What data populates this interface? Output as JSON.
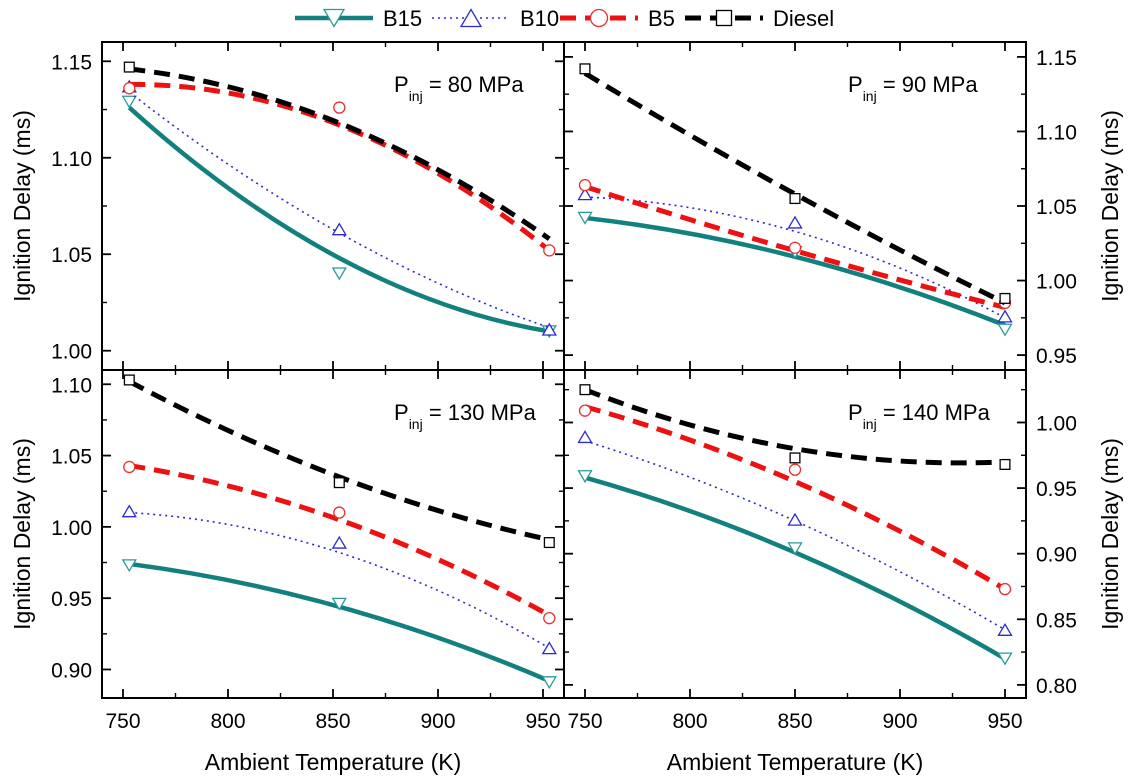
{
  "legend": {
    "placement": "top-center",
    "entries": [
      {
        "label": "B15",
        "series": "B15"
      },
      {
        "label": "B10",
        "series": "B10"
      },
      {
        "label": "B5",
        "series": "B5"
      },
      {
        "label": "Diesel",
        "series": "Diesel"
      }
    ]
  },
  "series_styles": {
    "B15": {
      "color": "#138080",
      "marker_color": "#2a9a96",
      "marker": "triangle-down",
      "line": "solid"
    },
    "B10": {
      "color": "#2a2ad4",
      "marker_color": "#2a2ad4",
      "marker": "triangle-up",
      "line": "dotted"
    },
    "B5": {
      "color": "#ee1111",
      "marker_color": "#e83030",
      "marker": "circle",
      "line": "dashed"
    },
    "Diesel": {
      "color": "#000000",
      "marker_color": "#000000",
      "marker": "square",
      "line": "dashed"
    }
  },
  "chart_data": [
    {
      "type": "scatter",
      "annotation": {
        "main": "P",
        "sub": "inj",
        "rest": " = 80 MPa"
      },
      "xlabel": "",
      "ylabel": "Ignition Delay (ms)",
      "ylabel_side": "left",
      "xlim": [
        740,
        960
      ],
      "ylim": [
        0.99,
        1.16
      ],
      "xticks": [
        "750",
        "800",
        "850",
        "900",
        "950"
      ],
      "show_xtick_labels": false,
      "yticks": [
        "1.00",
        "1.05",
        "1.10",
        "1.15"
      ],
      "series": [
        {
          "name": "B15",
          "x": [
            753,
            853,
            953
          ],
          "y": [
            1.129,
            1.04,
            1.01
          ],
          "fit": [
            1.126,
            1.048,
            1.01
          ]
        },
        {
          "name": "B10",
          "x": [
            753,
            853,
            953
          ],
          "y": [
            1.137,
            1.063,
            1.011
          ],
          "fit": [
            1.134,
            1.061,
            1.012
          ]
        },
        {
          "name": "B5",
          "x": [
            753,
            853,
            953
          ],
          "y": [
            1.136,
            1.126,
            1.052
          ],
          "fit": [
            1.138,
            1.117,
            1.052
          ]
        },
        {
          "name": "Diesel",
          "x": [
            753,
            853,
            953
          ],
          "y": [
            1.147,
            null,
            null
          ],
          "fit": [
            1.146,
            1.118,
            1.058
          ]
        }
      ]
    },
    {
      "type": "scatter",
      "annotation": {
        "main": "P",
        "sub": "inj",
        "rest": " = 90 MPa"
      },
      "xlabel": "",
      "ylabel": "Ignition Delay (ms)",
      "ylabel_side": "right",
      "xlim": [
        740,
        960
      ],
      "ylim": [
        0.94,
        1.16
      ],
      "xticks": [
        "750",
        "800",
        "850",
        "900",
        "950"
      ],
      "show_xtick_labels": false,
      "yticks": [
        "0.95",
        "1.00",
        "1.05",
        "1.10",
        "1.15"
      ],
      "series": [
        {
          "name": "B15",
          "x": [
            750,
            850,
            950
          ],
          "y": [
            1.042,
            1.019,
            0.967
          ],
          "fit": [
            1.042,
            1.016,
            0.97
          ]
        },
        {
          "name": "B10",
          "x": [
            750,
            850,
            950
          ],
          "y": [
            1.058,
            1.039,
            0.976
          ],
          "fit": [
            1.056,
            1.033,
            0.975
          ]
        },
        {
          "name": "B5",
          "x": [
            750,
            850,
            950
          ],
          "y": [
            1.064,
            1.022,
            0.985
          ],
          "fit": [
            1.063,
            1.02,
            0.982
          ]
        },
        {
          "name": "Diesel",
          "x": [
            750,
            850,
            950
          ],
          "y": [
            1.142,
            1.055,
            0.988
          ],
          "fit": [
            1.139,
            1.058,
            0.985
          ]
        }
      ]
    },
    {
      "type": "scatter",
      "annotation": {
        "main": "P",
        "sub": "inj",
        "rest": " = 130 MPa"
      },
      "xlabel": "Ambient Temperature (K)",
      "ylabel": "Ignition Delay (ms)",
      "ylabel_side": "left",
      "xlim": [
        740,
        960
      ],
      "ylim": [
        0.88,
        1.11
      ],
      "xticks": [
        "750",
        "800",
        "850",
        "900",
        "950"
      ],
      "show_xtick_labels": true,
      "yticks": [
        "0.90",
        "0.95",
        "1.00",
        "1.05",
        "1.10"
      ],
      "series": [
        {
          "name": "B15",
          "x": [
            753,
            853,
            953
          ],
          "y": [
            0.973,
            0.946,
            0.891
          ],
          "fit": [
            0.974,
            0.944,
            0.892
          ]
        },
        {
          "name": "B10",
          "x": [
            753,
            853,
            953
          ],
          "y": [
            1.011,
            0.989,
            0.915
          ],
          "fit": [
            1.01,
            0.982,
            0.915
          ]
        },
        {
          "name": "B5",
          "x": [
            753,
            853,
            953
          ],
          "y": [
            1.042,
            1.01,
            0.936
          ],
          "fit": [
            1.043,
            1.005,
            0.938
          ]
        },
        {
          "name": "Diesel",
          "x": [
            753,
            853,
            953
          ],
          "y": [
            1.103,
            1.031,
            0.989
          ],
          "fit": [
            1.102,
            1.035,
            0.991
          ]
        }
      ]
    },
    {
      "type": "scatter",
      "annotation": {
        "main": "P",
        "sub": "inj",
        "rest": " = 140 MPa"
      },
      "xlabel": "Ambient Temperature (K)",
      "ylabel": "Ignition Delay (ms)",
      "ylabel_side": "right",
      "xlim": [
        740,
        960
      ],
      "ylim": [
        0.79,
        1.04
      ],
      "xticks": [
        "750",
        "800",
        "850",
        "900",
        "950"
      ],
      "show_xtick_labels": true,
      "yticks": [
        "0.80",
        "0.85",
        "0.90",
        "0.95",
        "1.00"
      ],
      "series": [
        {
          "name": "B15",
          "x": [
            750,
            850,
            950
          ],
          "y": [
            0.959,
            0.904,
            0.82
          ],
          "fit": [
            0.958,
            0.901,
            0.82
          ]
        },
        {
          "name": "B10",
          "x": [
            750,
            850,
            950
          ],
          "y": [
            0.989,
            0.926,
            0.842
          ],
          "fit": [
            0.986,
            0.925,
            0.842
          ]
        },
        {
          "name": "B5",
          "x": [
            750,
            850,
            950
          ],
          "y": [
            1.009,
            0.964,
            0.873
          ],
          "fit": [
            1.012,
            0.955,
            0.873
          ]
        },
        {
          "name": "Diesel",
          "x": [
            750,
            850,
            950
          ],
          "y": [
            1.025,
            0.973,
            0.968
          ],
          "fit": [
            1.025,
            0.98,
            0.97
          ]
        }
      ]
    }
  ]
}
